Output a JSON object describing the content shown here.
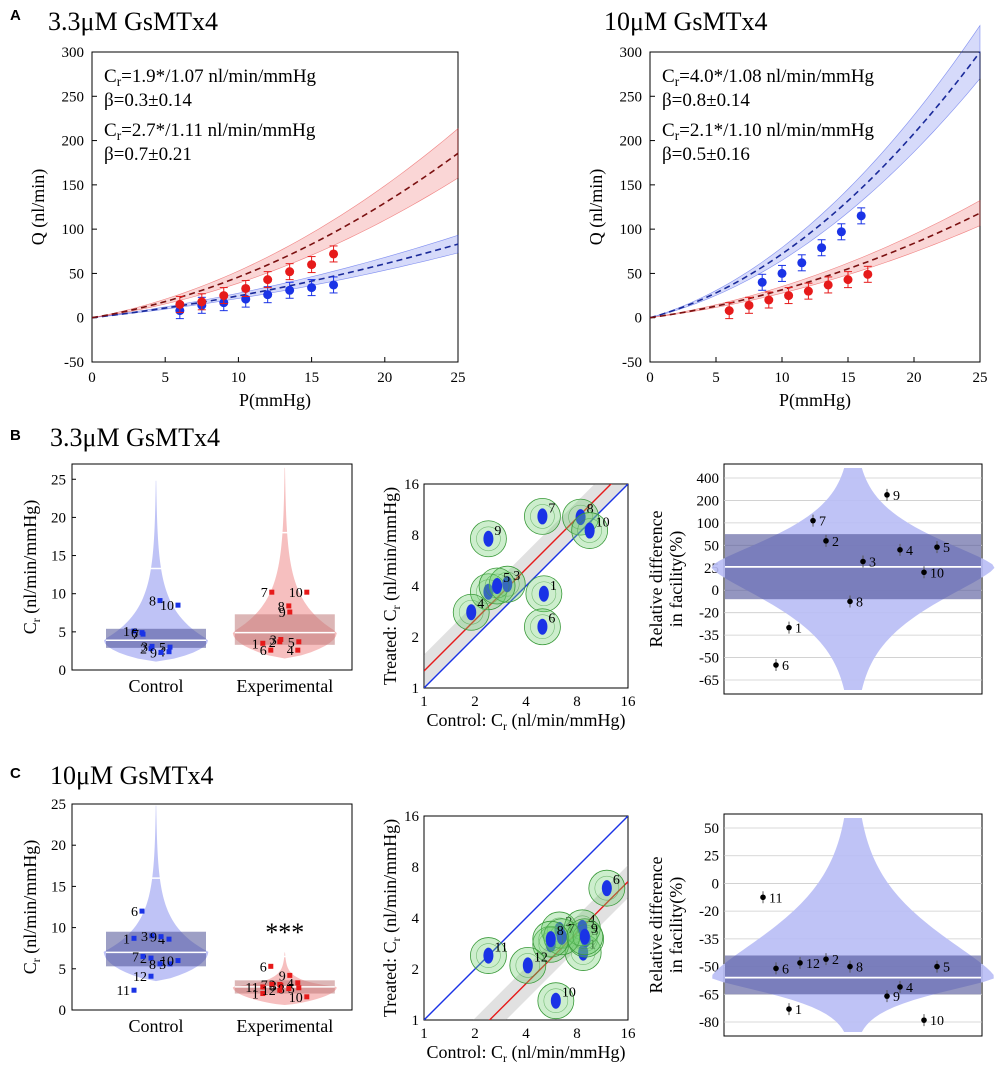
{
  "panel_letters": {
    "a": "A",
    "b": "B",
    "c": "C"
  },
  "panel_titles": {
    "a_left": "3.3μM GsMTx4",
    "a_right": "10μM GsMTx4",
    "b": "3.3μM GsMTx4",
    "c": "10μM GsMTx4"
  },
  "colors": {
    "control": "#1a33e6",
    "treated": "#e61a1a",
    "violin_control": "#b8bdf5",
    "violin_treated": "#f5b8b8",
    "iqr": "#4d5096",
    "iqr_red": "#c07a7a",
    "green": "#6fcf6f"
  },
  "chart_data": [
    {
      "id": "a_left",
      "type": "line",
      "title": "3.3μM GsMTx4",
      "xlabel": "P(mmHg)",
      "ylabel": "Q (nl/min)",
      "xlim": [
        0,
        25
      ],
      "ylim": [
        -50,
        300
      ],
      "xticks": [
        0,
        5,
        10,
        15,
        20,
        25
      ],
      "yticks": [
        -50,
        0,
        50,
        100,
        150,
        200,
        250,
        300
      ],
      "annotations": {
        "blue_line1": "=1.9*/1.07 nl/min/mmHg",
        "blue_line2": "=0.3±0.14",
        "red_line1": "=2.7*/1.11 nl/min/mmHg",
        "red_line2": "=0.7±0.21"
      },
      "series": [
        {
          "color": "blue",
          "C": 1.9,
          "beta": 0.3,
          "ci": 0.12,
          "points": [
            [
              6,
              8
            ],
            [
              7.5,
              14
            ],
            [
              9,
              17
            ],
            [
              10.5,
              21
            ],
            [
              12,
              26
            ],
            [
              13.5,
              31
            ],
            [
              15,
              34
            ],
            [
              16.5,
              37
            ]
          ]
        },
        {
          "color": "red",
          "C": 2.7,
          "beta": 0.7,
          "ci": 0.15,
          "points": [
            [
              6,
              15
            ],
            [
              7.5,
              18
            ],
            [
              9,
              25
            ],
            [
              10.5,
              33
            ],
            [
              12,
              43
            ],
            [
              13.5,
              52
            ],
            [
              15,
              60
            ],
            [
              16.5,
              72
            ]
          ]
        }
      ]
    },
    {
      "id": "a_right",
      "type": "line",
      "title": "10μM GsMTx4",
      "xlabel": "P(mmHg)",
      "ylabel": "Q (nl/min)",
      "xlim": [
        0,
        25
      ],
      "ylim": [
        -50,
        300
      ],
      "xticks": [
        0,
        5,
        10,
        15,
        20,
        25
      ],
      "yticks": [
        -50,
        0,
        50,
        100,
        150,
        200,
        250,
        300
      ],
      "annotations": {
        "blue_line1": "=4.0*/1.08 nl/min/mmHg",
        "blue_line2": "=0.8±0.14",
        "red_line1": "=2.1*/1.10 nl/min/mmHg",
        "red_line2": "=0.5±0.16"
      },
      "series": [
        {
          "color": "blue",
          "C": 4.0,
          "beta": 0.8,
          "ci": 0.1,
          "points": [
            [
              8.5,
              40
            ],
            [
              10,
              50
            ],
            [
              11.5,
              62
            ],
            [
              13,
              79
            ],
            [
              14.5,
              97
            ],
            [
              16,
              115
            ]
          ]
        },
        {
          "color": "red",
          "C": 2.1,
          "beta": 0.5,
          "ci": 0.12,
          "points": [
            [
              6,
              8
            ],
            [
              7.5,
              14
            ],
            [
              9,
              20
            ],
            [
              10.5,
              25
            ],
            [
              12,
              30
            ],
            [
              13.5,
              37
            ],
            [
              15,
              43
            ],
            [
              16.5,
              49
            ]
          ]
        }
      ]
    },
    {
      "id": "b_violin",
      "type": "scatter",
      "ylabel": "C",
      "ylim": [
        0,
        27
      ],
      "yticks": [
        0,
        5,
        10,
        15,
        20,
        25
      ],
      "categories": [
        "Control",
        "Experimental"
      ],
      "control": {
        "median": 3.9,
        "q1": 2.9,
        "q3": 5.4,
        "upper": 13.3,
        "points": [
          {
            "n": "1",
            "v": 5.1
          },
          {
            "n": "2",
            "v": 2.8
          },
          {
            "n": "3",
            "v": 3.1
          },
          {
            "n": "4",
            "v": 2.4
          },
          {
            "n": "5",
            "v": 3.0
          },
          {
            "n": "6",
            "v": 4.9
          },
          {
            "n": "7",
            "v": 4.7
          },
          {
            "n": "8",
            "v": 9.1
          },
          {
            "n": "9",
            "v": 2.3
          },
          {
            "n": "10",
            "v": 8.5
          }
        ]
      },
      "experimental": {
        "median": 4.9,
        "q1": 3.3,
        "q3": 7.3,
        "upper": 18.0,
        "points": [
          {
            "n": "1",
            "v": 3.5
          },
          {
            "n": "2",
            "v": 3.7
          },
          {
            "n": "3",
            "v": 4.0
          },
          {
            "n": "4",
            "v": 2.6
          },
          {
            "n": "5",
            "v": 3.7
          },
          {
            "n": "6",
            "v": 2.6
          },
          {
            "n": "7",
            "v": 10.2
          },
          {
            "n": "8",
            "v": 8.4
          },
          {
            "n": "9",
            "v": 7.6
          },
          {
            "n": "10",
            "v": 10.2
          }
        ]
      }
    },
    {
      "id": "b_scatter",
      "type": "scatter",
      "xlabel": "Control: C",
      "ylabel": "Treated: C",
      "ticks": [
        1,
        2,
        4,
        8,
        16
      ],
      "ratio": 1.26,
      "points": [
        {
          "n": "1",
          "x": 5.1,
          "y": 3.6
        },
        {
          "n": "2",
          "x": 2.4,
          "y": 3.7
        },
        {
          "n": "3",
          "x": 3.1,
          "y": 4.1
        },
        {
          "n": "4",
          "x": 1.9,
          "y": 2.8
        },
        {
          "n": "5",
          "x": 2.7,
          "y": 4.0
        },
        {
          "n": "6",
          "x": 5.0,
          "y": 2.3
        },
        {
          "n": "7",
          "x": 5.0,
          "y": 10.3
        },
        {
          "n": "8",
          "x": 8.4,
          "y": 10.2
        },
        {
          "n": "9",
          "x": 2.4,
          "y": 7.6
        },
        {
          "n": "10",
          "x": 9.5,
          "y": 8.5
        }
      ]
    },
    {
      "id": "b_reldiff",
      "type": "scatter",
      "ylabel": "Relative difference in facility(%)",
      "yticks": [
        400,
        200,
        100,
        50,
        25,
        0,
        -20,
        -35,
        -50,
        -65
      ],
      "ticklabels": [
        "400",
        "200",
        "100",
        "50",
        "25",
        "0",
        "-20",
        "-35",
        "-50",
        "-65"
      ],
      "mean": 26,
      "ci_lo": -8,
      "ci_hi": 75,
      "points": [
        {
          "n": "1",
          "v": -30
        },
        {
          "n": "2",
          "v": 60
        },
        {
          "n": "3",
          "v": 32
        },
        {
          "n": "4",
          "v": 45
        },
        {
          "n": "5",
          "v": 48
        },
        {
          "n": "6",
          "v": -55
        },
        {
          "n": "7",
          "v": 110
        },
        {
          "n": "8",
          "v": -10
        },
        {
          "n": "9",
          "v": 250
        },
        {
          "n": "10",
          "v": 20
        }
      ]
    },
    {
      "id": "c_violin",
      "type": "scatter",
      "ylabel": "C",
      "ylim": [
        0,
        25
      ],
      "yticks": [
        0,
        5,
        10,
        15,
        20,
        25
      ],
      "categories": [
        "Control",
        "Experimental"
      ],
      "significance": "***",
      "control": {
        "median": 7.0,
        "q1": 5.3,
        "q3": 9.5,
        "upper": 16.0,
        "points": [
          {
            "n": "1",
            "v": 8.7
          },
          {
            "n": "2",
            "v": 6.3
          },
          {
            "n": "3",
            "v": 9.0
          },
          {
            "n": "4",
            "v": 8.6
          },
          {
            "n": "5",
            "v": 5.6
          },
          {
            "n": "6",
            "v": 12.0
          },
          {
            "n": "7",
            "v": 6.5
          },
          {
            "n": "8",
            "v": 5.6
          },
          {
            "n": "9",
            "v": 8.9
          },
          {
            "n": "10",
            "v": 6.0
          },
          {
            "n": "11",
            "v": 2.4
          },
          {
            "n": "12",
            "v": 4.1
          }
        ]
      },
      "experimental": {
        "median": 2.8,
        "q1": 2.0,
        "q3": 3.6,
        "upper": 6.5,
        "points": [
          {
            "n": "1",
            "v": 2.0
          },
          {
            "n": "2",
            "v": 3.1
          },
          {
            "n": "3",
            "v": 3.0
          },
          {
            "n": "4",
            "v": 3.3
          },
          {
            "n": "5",
            "v": 2.7
          },
          {
            "n": "6",
            "v": 5.3
          },
          {
            "n": "7",
            "v": 3.1
          },
          {
            "n": "8",
            "v": 2.6
          },
          {
            "n": "9",
            "v": 4.2
          },
          {
            "n": "10",
            "v": 1.6
          },
          {
            "n": "11",
            "v": 2.8
          },
          {
            "n": "12",
            "v": 2.4
          }
        ]
      }
    },
    {
      "id": "c_scatter",
      "type": "scatter",
      "xlabel": "Control: C",
      "ylabel": "Treated: C",
      "ticks": [
        1,
        2,
        4,
        8,
        16
      ],
      "ratio": 0.41,
      "points": [
        {
          "n": "1",
          "x": 8.7,
          "y": 2.5
        },
        {
          "n": "2",
          "x": 6.3,
          "y": 3.4
        },
        {
          "n": "3",
          "x": 9.0,
          "y": 3.0
        },
        {
          "n": "4",
          "x": 8.6,
          "y": 3.5
        },
        {
          "n": "5",
          "x": 5.6,
          "y": 2.8
        },
        {
          "n": "6",
          "x": 12.0,
          "y": 6.0
        },
        {
          "n": "7",
          "x": 6.5,
          "y": 3.1
        },
        {
          "n": "8",
          "x": 5.6,
          "y": 3.0
        },
        {
          "n": "9",
          "x": 8.9,
          "y": 3.1
        },
        {
          "n": "10",
          "x": 6.0,
          "y": 1.3
        },
        {
          "n": "11",
          "x": 2.4,
          "y": 2.4
        },
        {
          "n": "12",
          "x": 4.1,
          "y": 2.1
        }
      ]
    },
    {
      "id": "c_reldiff",
      "type": "scatter",
      "ylabel": "Relative difference in facility(%)",
      "yticks": [
        50,
        25,
        0,
        -20,
        -35,
        -50,
        -65,
        -80
      ],
      "ticklabels": [
        "50",
        "25",
        "0",
        "-20",
        "-35",
        "-50",
        "-65",
        "-80"
      ],
      "mean": -56,
      "ci_lo": -65,
      "ci_hi": -44,
      "points": [
        {
          "n": "1",
          "v": -73
        },
        {
          "n": "2",
          "v": -46
        },
        {
          "n": "4",
          "v": -61
        },
        {
          "n": "5",
          "v": -50
        },
        {
          "n": "6",
          "v": -51
        },
        {
          "n": "8",
          "v": -50
        },
        {
          "n": "9",
          "v": -66
        },
        {
          "n": "10",
          "v": -79
        },
        {
          "n": "11",
          "v": -10
        },
        {
          "n": "12",
          "v": -48
        }
      ]
    }
  ]
}
